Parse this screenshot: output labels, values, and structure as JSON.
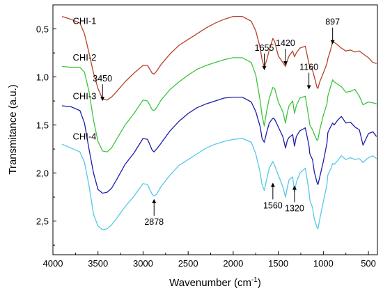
{
  "chart_data": {
    "type": "line",
    "title": "",
    "xlabel": "Wavenumber (cm",
    "xlabel_sup": "-1",
    "xlabel_tail": ")",
    "ylabel": "Transmitance (a.u.)",
    "xlim": [
      4000,
      400
    ],
    "ylim": [
      2.85,
      0.25
    ],
    "x_reversed": true,
    "y_reversed": true,
    "x_ticks": [
      4000,
      3500,
      3000,
      2500,
      2000,
      1500,
      1000,
      500
    ],
    "x_tick_labels": [
      "4000",
      "3500",
      "3000",
      "2500",
      "2000",
      "1500",
      "1000",
      "500"
    ],
    "y_ticks": [
      0.5,
      1.0,
      1.5,
      2.0,
      2.5
    ],
    "y_tick_labels": [
      "0,5",
      "1,0",
      "1,5",
      "2,0",
      "2,5"
    ],
    "grid": false,
    "legend": "inline labels",
    "series": [
      {
        "name": "CHI-1",
        "color": "#b5412b",
        "x": [
          3900,
          3800,
          3700,
          3650,
          3600,
          3550,
          3500,
          3450,
          3400,
          3350,
          3300,
          3200,
          3100,
          3000,
          2950,
          2900,
          2878,
          2850,
          2800,
          2700,
          2600,
          2500,
          2400,
          2300,
          2200,
          2100,
          2000,
          1900,
          1800,
          1750,
          1700,
          1680,
          1655,
          1630,
          1600,
          1560,
          1540,
          1500,
          1450,
          1420,
          1400,
          1380,
          1340,
          1320,
          1300,
          1260,
          1200,
          1160,
          1150,
          1120,
          1100,
          1070,
          1060,
          1040,
          1000,
          960,
          950,
          920,
          897,
          880,
          850,
          800,
          750,
          700,
          650,
          600,
          560,
          500,
          450,
          410
        ],
        "y": [
          0.37,
          0.4,
          0.44,
          0.55,
          0.75,
          0.96,
          1.12,
          1.23,
          1.24,
          1.21,
          1.16,
          1.05,
          0.96,
          0.88,
          0.88,
          0.96,
          0.97,
          0.94,
          0.87,
          0.76,
          0.67,
          0.61,
          0.55,
          0.49,
          0.44,
          0.4,
          0.37,
          0.37,
          0.42,
          0.52,
          0.7,
          0.82,
          0.9,
          0.83,
          0.72,
          0.6,
          0.63,
          0.78,
          0.85,
          0.89,
          0.83,
          0.78,
          0.73,
          0.79,
          0.75,
          0.7,
          0.68,
          0.86,
          0.89,
          0.93,
          1.0,
          1.11,
          1.12,
          1.05,
          0.96,
          0.86,
          0.81,
          0.72,
          0.63,
          0.64,
          0.66,
          0.7,
          0.73,
          0.72,
          0.74,
          0.73,
          0.76,
          0.8,
          0.85,
          0.86
        ]
      },
      {
        "name": "CHI-2",
        "color": "#3cc43c",
        "x": [
          3900,
          3800,
          3700,
          3650,
          3600,
          3550,
          3500,
          3450,
          3400,
          3350,
          3300,
          3200,
          3100,
          3000,
          2950,
          2900,
          2878,
          2850,
          2800,
          2700,
          2600,
          2500,
          2400,
          2300,
          2200,
          2100,
          2000,
          1900,
          1800,
          1750,
          1700,
          1680,
          1655,
          1630,
          1600,
          1560,
          1540,
          1500,
          1450,
          1420,
          1400,
          1380,
          1340,
          1320,
          1300,
          1260,
          1200,
          1160,
          1150,
          1120,
          1100,
          1070,
          1060,
          1040,
          1000,
          960,
          950,
          920,
          897,
          880,
          850,
          800,
          750,
          700,
          650,
          600,
          560,
          500,
          450,
          410
        ],
        "y": [
          0.89,
          0.9,
          0.9,
          0.95,
          1.15,
          1.45,
          1.67,
          1.77,
          1.78,
          1.74,
          1.66,
          1.5,
          1.38,
          1.24,
          1.25,
          1.34,
          1.35,
          1.32,
          1.24,
          1.13,
          1.05,
          0.98,
          0.92,
          0.88,
          0.85,
          0.82,
          0.8,
          0.8,
          0.85,
          0.98,
          1.25,
          1.4,
          1.51,
          1.36,
          1.22,
          1.11,
          1.12,
          1.26,
          1.36,
          1.48,
          1.37,
          1.3,
          1.25,
          1.38,
          1.3,
          1.22,
          1.2,
          1.43,
          1.5,
          1.55,
          1.6,
          1.66,
          1.65,
          1.55,
          1.4,
          1.28,
          1.2,
          1.1,
          1.03,
          1.05,
          1.07,
          1.1,
          1.16,
          1.15,
          1.13,
          1.2,
          1.29,
          1.26,
          1.27,
          1.28
        ]
      },
      {
        "name": "CHI-3",
        "color": "#1d1daa",
        "x": [
          3900,
          3800,
          3700,
          3650,
          3600,
          3550,
          3500,
          3450,
          3400,
          3350,
          3300,
          3200,
          3100,
          3000,
          2950,
          2900,
          2878,
          2850,
          2800,
          2700,
          2600,
          2500,
          2400,
          2300,
          2200,
          2100,
          2000,
          1900,
          1800,
          1750,
          1700,
          1680,
          1655,
          1630,
          1600,
          1560,
          1540,
          1500,
          1450,
          1420,
          1400,
          1380,
          1340,
          1320,
          1300,
          1260,
          1200,
          1160,
          1150,
          1120,
          1100,
          1070,
          1060,
          1040,
          1000,
          960,
          950,
          920,
          897,
          880,
          850,
          800,
          750,
          700,
          650,
          600,
          560,
          500,
          450,
          410
        ],
        "y": [
          1.3,
          1.31,
          1.35,
          1.48,
          1.75,
          2.0,
          2.17,
          2.21,
          2.2,
          2.16,
          2.08,
          1.91,
          1.79,
          1.64,
          1.65,
          1.76,
          1.78,
          1.75,
          1.69,
          1.56,
          1.46,
          1.38,
          1.32,
          1.28,
          1.25,
          1.22,
          1.21,
          1.21,
          1.26,
          1.36,
          1.52,
          1.64,
          1.68,
          1.58,
          1.48,
          1.43,
          1.44,
          1.52,
          1.62,
          1.74,
          1.66,
          1.63,
          1.6,
          1.72,
          1.62,
          1.56,
          1.53,
          1.71,
          1.8,
          1.86,
          1.99,
          2.1,
          2.12,
          2.04,
          1.88,
          1.69,
          1.58,
          1.52,
          1.48,
          1.5,
          1.46,
          1.41,
          1.48,
          1.47,
          1.52,
          1.55,
          1.71,
          1.59,
          1.57,
          1.62
        ]
      },
      {
        "name": "CHI-4",
        "color": "#56c8e8",
        "x": [
          3900,
          3800,
          3700,
          3650,
          3600,
          3550,
          3500,
          3450,
          3400,
          3350,
          3300,
          3200,
          3100,
          3000,
          2950,
          2900,
          2878,
          2850,
          2800,
          2700,
          2600,
          2500,
          2400,
          2300,
          2200,
          2100,
          2000,
          1900,
          1800,
          1750,
          1700,
          1680,
          1655,
          1630,
          1600,
          1560,
          1540,
          1500,
          1450,
          1420,
          1400,
          1380,
          1340,
          1320,
          1300,
          1260,
          1200,
          1160,
          1150,
          1120,
          1100,
          1070,
          1060,
          1040,
          1000,
          960,
          950,
          920,
          897,
          880,
          850,
          800,
          750,
          700,
          650,
          600,
          560,
          500,
          450,
          410
        ],
        "y": [
          1.7,
          1.74,
          1.78,
          1.89,
          2.13,
          2.43,
          2.55,
          2.59,
          2.58,
          2.54,
          2.48,
          2.35,
          2.24,
          2.11,
          2.12,
          2.22,
          2.24,
          2.22,
          2.14,
          2.02,
          1.92,
          1.86,
          1.8,
          1.74,
          1.7,
          1.67,
          1.65,
          1.64,
          1.68,
          1.8,
          2.0,
          2.12,
          2.18,
          2.07,
          1.95,
          1.88,
          1.92,
          2.02,
          2.14,
          2.25,
          2.15,
          2.07,
          2.04,
          2.2,
          2.1,
          2.0,
          1.95,
          2.18,
          2.28,
          2.36,
          2.48,
          2.57,
          2.58,
          2.48,
          2.3,
          2.12,
          2.02,
          1.96,
          1.9,
          1.91,
          1.88,
          1.82,
          1.86,
          1.84,
          1.86,
          1.85,
          1.89,
          1.84,
          1.82,
          1.85
        ]
      }
    ],
    "series_labels": [
      {
        "name": "CHI-1",
        "x": 3780,
        "y": 0.45
      },
      {
        "name": "CHI-2",
        "x": 3780,
        "y": 0.83
      },
      {
        "name": "CHI-3",
        "x": 3780,
        "y": 1.23
      },
      {
        "name": "CHI-4",
        "x": 3780,
        "y": 1.65
      }
    ],
    "annotations": [
      {
        "label": "3450",
        "x": 3450,
        "y": 1.25,
        "dir": "down"
      },
      {
        "label": "2878",
        "x": 2878,
        "y": 2.27,
        "dir": "up"
      },
      {
        "label": "1655",
        "x": 1655,
        "y": 0.93,
        "dir": "down"
      },
      {
        "label": "1560",
        "x": 1560,
        "y": 2.1,
        "dir": "up"
      },
      {
        "label": "1420",
        "x": 1420,
        "y": 0.88,
        "dir": "down"
      },
      {
        "label": "1320",
        "x": 1320,
        "y": 2.13,
        "dir": "up"
      },
      {
        "label": "1160",
        "x": 1160,
        "y": 1.13,
        "dir": "down"
      },
      {
        "label": "897",
        "x": 897,
        "y": 0.66,
        "dir": "down"
      }
    ]
  }
}
